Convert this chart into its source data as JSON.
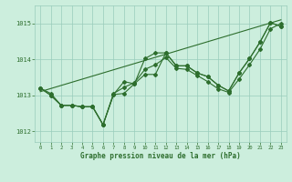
{
  "xlabel": "Graphe pression niveau de la mer (hPa)",
  "bg_color": "#cceedd",
  "grid_color": "#99ccbb",
  "line_color": "#2d6e2d",
  "marker_color": "#2d6e2d",
  "ylim": [
    1011.7,
    1015.5
  ],
  "xlim": [
    -0.5,
    23.5
  ],
  "yticks": [
    1012,
    1013,
    1014,
    1015
  ],
  "xticks": [
    0,
    1,
    2,
    3,
    4,
    5,
    6,
    7,
    8,
    9,
    10,
    11,
    12,
    13,
    14,
    15,
    16,
    17,
    18,
    19,
    20,
    21,
    22,
    23
  ],
  "hours": [
    0,
    1,
    2,
    3,
    4,
    5,
    6,
    7,
    8,
    9,
    10,
    11,
    12,
    13,
    14,
    15,
    16,
    17,
    18,
    19,
    20,
    21,
    22,
    23
  ],
  "series1": [
    1013.2,
    1013.0,
    1012.72,
    1012.72,
    1012.68,
    1012.68,
    1012.18,
    1013.02,
    1013.05,
    1013.32,
    1014.02,
    1014.18,
    1014.18,
    1013.82,
    1013.82,
    1013.62,
    1013.52,
    1013.28,
    1013.12,
    1013.62,
    1014.02,
    1014.48,
    1015.02,
    1014.92
  ],
  "series2": [
    1013.2,
    1013.0,
    1012.72,
    1012.72,
    1012.68,
    1012.68,
    1012.18,
    1013.02,
    1013.38,
    1013.32,
    1013.58,
    1013.58,
    1014.18,
    1013.82,
    1013.82,
    1013.62,
    1013.52,
    1013.28,
    1013.12,
    1013.62,
    1014.02,
    1014.48,
    1015.02,
    1014.92
  ],
  "series3": [
    1013.2,
    1013.05,
    1012.72,
    1012.72,
    1012.68,
    1012.68,
    1012.18,
    1013.05,
    1013.22,
    1013.35,
    1013.72,
    1013.85,
    1014.05,
    1013.75,
    1013.72,
    1013.55,
    1013.38,
    1013.18,
    1013.08,
    1013.45,
    1013.85,
    1014.28,
    1014.85,
    1015.0
  ],
  "trend_x": [
    0,
    23
  ],
  "trend_y": [
    1013.1,
    1015.1
  ]
}
